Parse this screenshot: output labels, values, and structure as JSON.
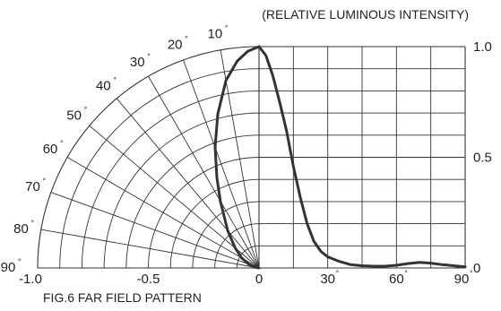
{
  "chart_data": {
    "type": "line",
    "ylabel": "(RELATIVE LUMINOUS INTENSITY)",
    "caption": "FIG.6  FAR FIELD PATTERN",
    "degree_symbol": "°",
    "polar": {
      "angle_labels": [
        "10",
        "20",
        "30",
        "40",
        "50",
        "60",
        "70",
        "80",
        "90"
      ],
      "angles": [
        10,
        20,
        30,
        40,
        50,
        60,
        70,
        80,
        90
      ],
      "radial_ticks": [
        "-1.0",
        "-0.5",
        "0"
      ],
      "rlim": [
        0,
        1.0
      ]
    },
    "cartesian": {
      "x_ticks": [
        "0",
        "30",
        "60",
        "90"
      ],
      "x_tick_values": [
        0,
        30,
        60,
        90
      ],
      "y_ticks": [
        "1.0",
        "0.5",
        "0"
      ],
      "y_tick_values": [
        1.0,
        0.5,
        0
      ],
      "xlim": [
        0,
        90
      ],
      "ylim": [
        0,
        1.0
      ]
    },
    "series": [
      {
        "x": [
          0,
          3,
          6,
          9,
          12,
          15,
          18,
          21,
          24,
          27,
          30,
          35,
          40,
          45,
          50,
          55,
          60,
          65,
          70,
          75,
          80,
          85,
          90
        ],
        "values": [
          1.0,
          0.96,
          0.87,
          0.75,
          0.62,
          0.46,
          0.32,
          0.2,
          0.12,
          0.075,
          0.05,
          0.03,
          0.015,
          0.01,
          0.008,
          0.008,
          0.012,
          0.02,
          0.025,
          0.022,
          0.015,
          0.01,
          0.005
        ]
      }
    ],
    "polar_series": {
      "angle": [
        0,
        3,
        6,
        10,
        15,
        20,
        25,
        30,
        40,
        50,
        60,
        70,
        80,
        90
      ],
      "r": [
        1.0,
        0.98,
        0.94,
        0.86,
        0.72,
        0.58,
        0.45,
        0.35,
        0.22,
        0.14,
        0.09,
        0.05,
        0.02,
        0.0
      ]
    }
  }
}
